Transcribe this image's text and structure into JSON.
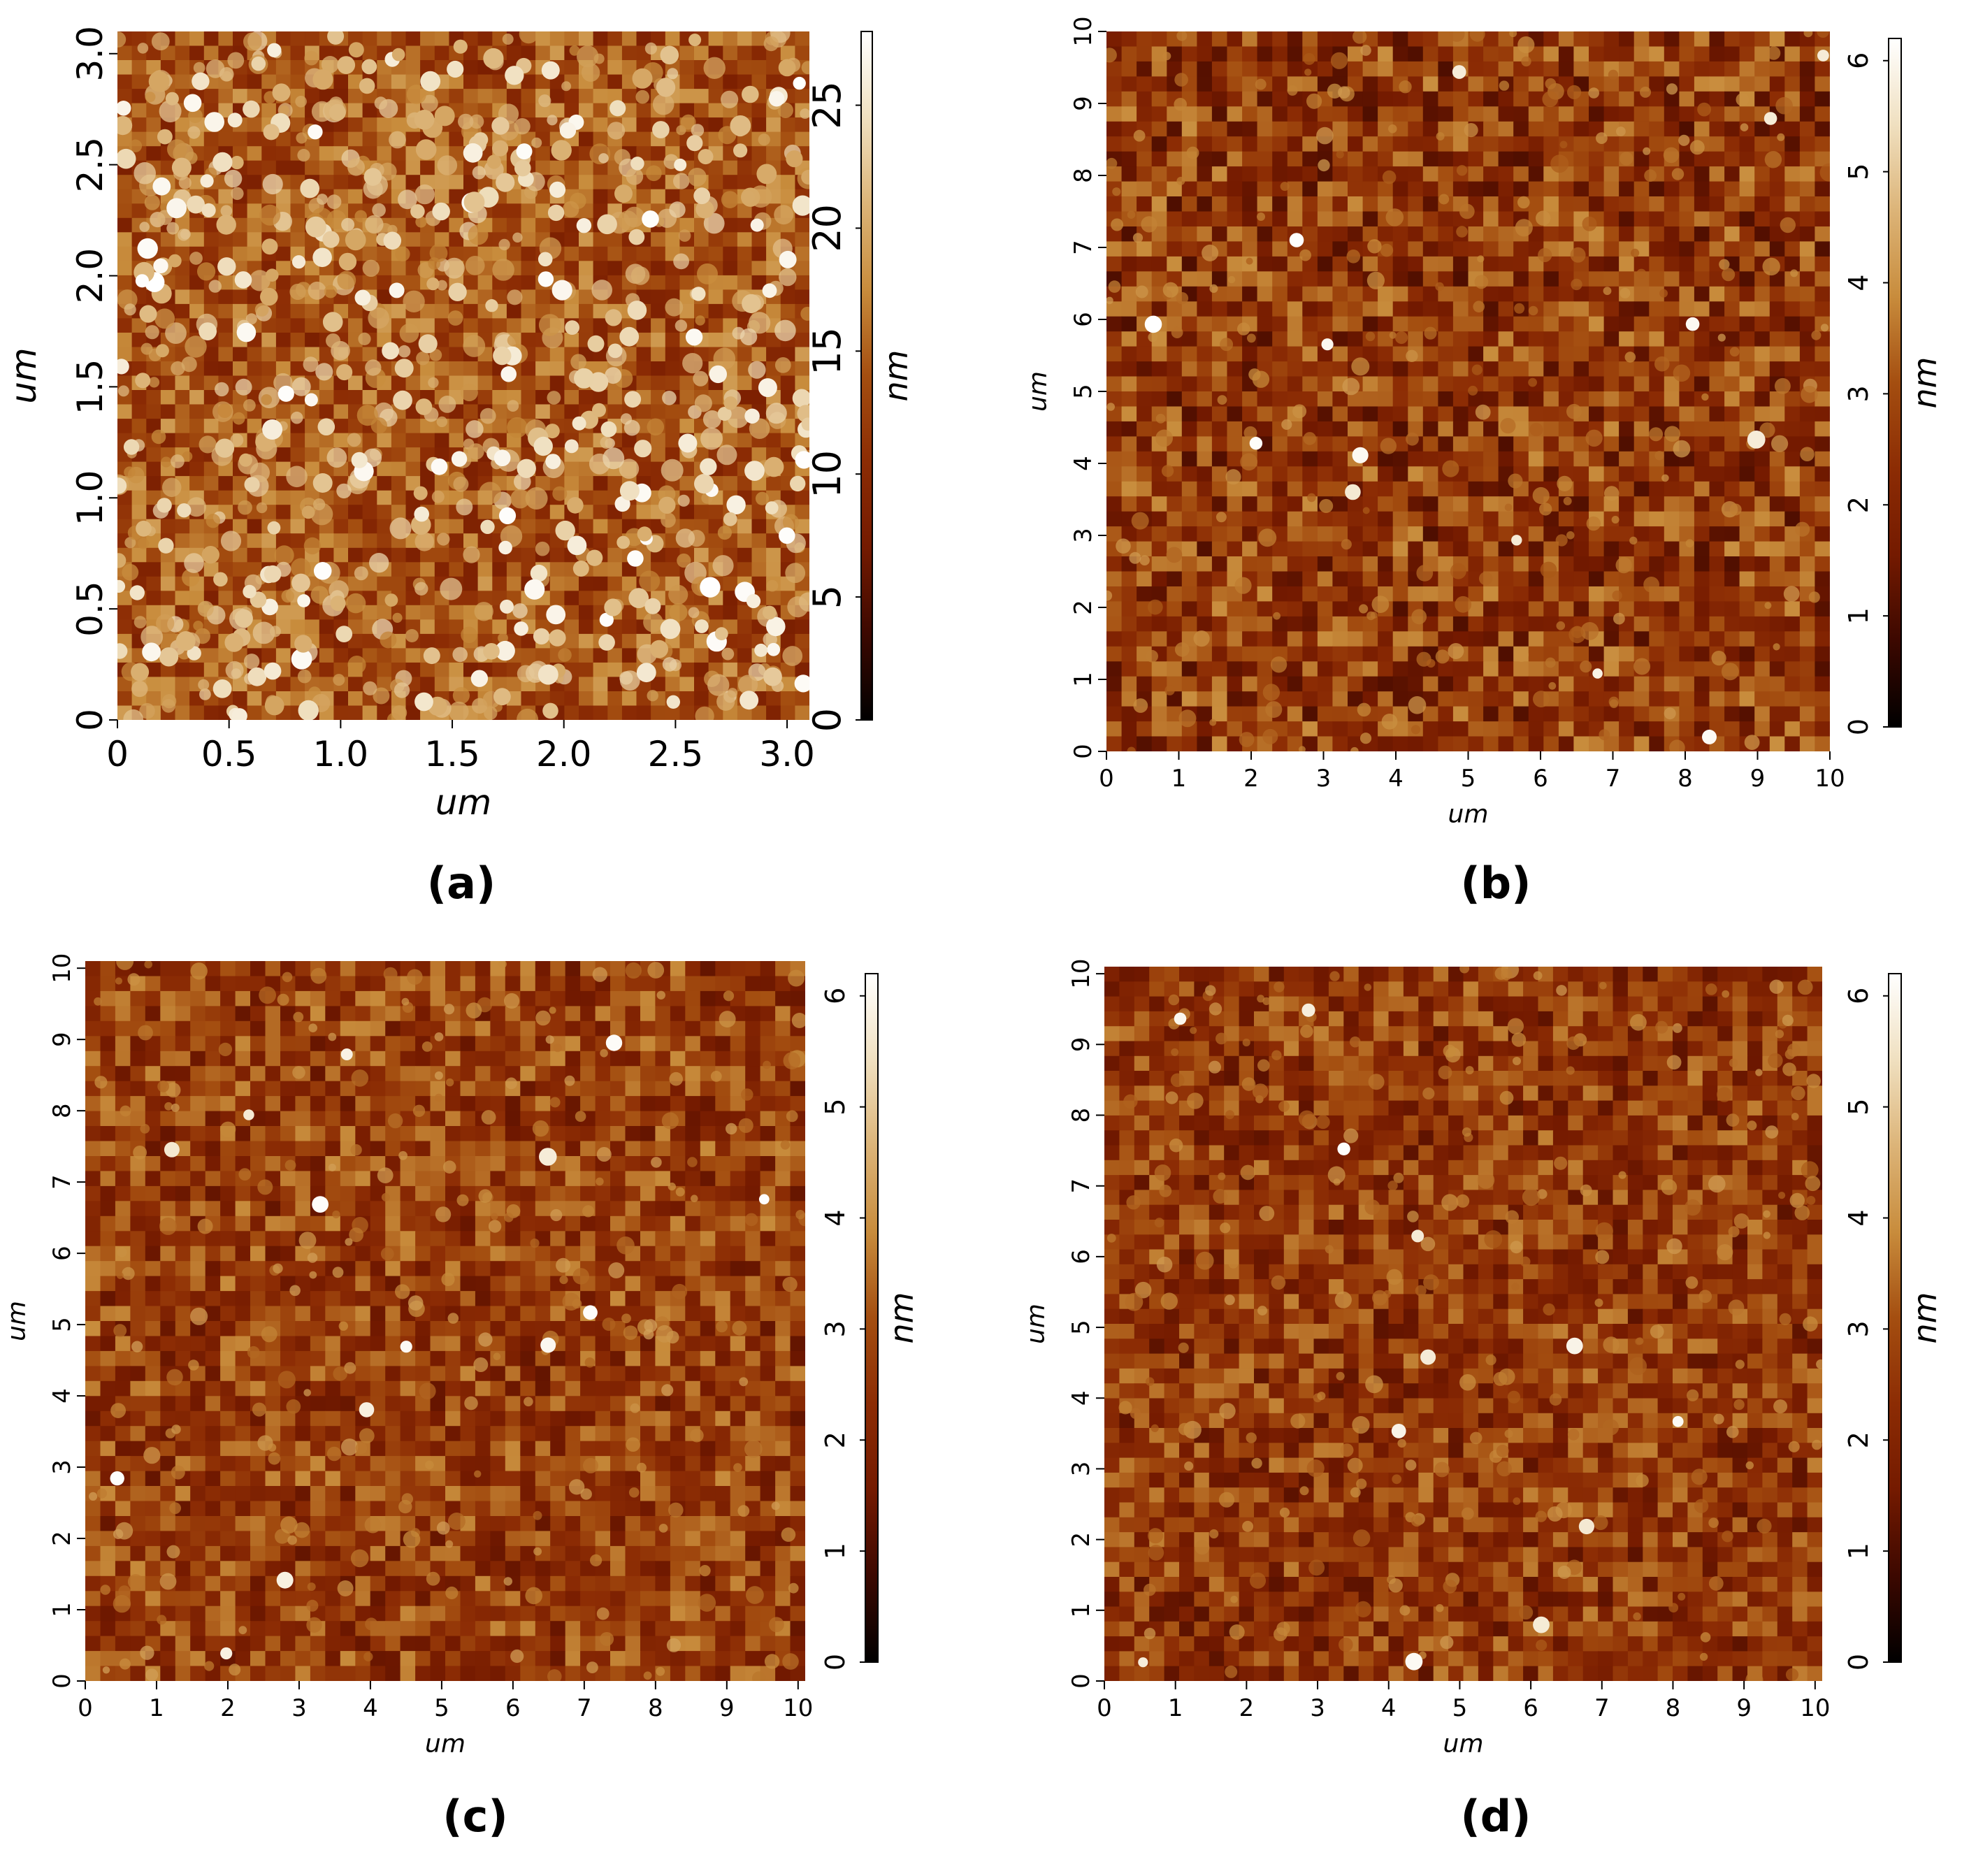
{
  "colors": {
    "background": "#ffffff",
    "afm_colormap": [
      "#000000",
      "#3c0800",
      "#741a00",
      "#8c2c04",
      "#a44e10",
      "#c88c3c",
      "#dcb478",
      "#f0e0c0",
      "#ffffff"
    ]
  },
  "panels": [
    {
      "id": "a",
      "caption": "(a)",
      "x_label": "um",
      "y_label": "um",
      "x_ticks": [
        "0",
        "0.5",
        "1.0",
        "1.5",
        "2.0",
        "2.5",
        "3.0"
      ],
      "y_ticks": [
        "0",
        "0.5",
        "1.0",
        "1.5",
        "2.0",
        "2.5",
        "3.0"
      ],
      "scan_size_um": 3.1,
      "colorbar": {
        "label": "nm",
        "ticks": [
          "0",
          "5",
          "10",
          "15",
          "20",
          "25"
        ],
        "max_nm": 28
      },
      "texture": {
        "level": 0.48,
        "contrast": 0.7,
        "blob_count": 320,
        "blob_min": 0.7,
        "blob_max": 1.0,
        "seed": 11
      }
    },
    {
      "id": "b",
      "caption": "(b)",
      "x_label": "um",
      "y_label": "um",
      "x_ticks": [
        "0",
        "1",
        "2",
        "3",
        "4",
        "5",
        "6",
        "7",
        "8",
        "9",
        "10"
      ],
      "y_ticks": [
        "0",
        "1",
        "2",
        "3",
        "4",
        "5",
        "6",
        "7",
        "8",
        "9",
        "10"
      ],
      "scan_size_um": 10,
      "colorbar": {
        "label": "nm",
        "ticks": [
          "0",
          "1",
          "2",
          "3",
          "4",
          "5",
          "6"
        ],
        "max_nm": 6.2
      },
      "texture": {
        "level": 0.4,
        "contrast": 0.85,
        "blob_count": 14,
        "blob_min": 0.9,
        "blob_max": 1.0,
        "seed": 23
      }
    },
    {
      "id": "c",
      "caption": "(c)",
      "x_label": "um",
      "y_label": "um",
      "x_ticks": [
        "0",
        "1",
        "2",
        "3",
        "4",
        "5",
        "6",
        "7",
        "8",
        "9",
        "10"
      ],
      "y_ticks": [
        "0",
        "1",
        "2",
        "3",
        "4",
        "5",
        "6",
        "7",
        "8",
        "9",
        "10"
      ],
      "scan_size_um": 10.1,
      "colorbar": {
        "label": "nm",
        "ticks": [
          "0",
          "1",
          "2",
          "3",
          "4",
          "5",
          "6"
        ],
        "max_nm": 6.2
      },
      "texture": {
        "level": 0.42,
        "contrast": 0.75,
        "blob_count": 14,
        "blob_min": 0.9,
        "blob_max": 1.0,
        "seed": 37
      }
    },
    {
      "id": "d",
      "caption": "(d)",
      "x_label": "um",
      "y_label": "um",
      "x_ticks": [
        "0",
        "1",
        "2",
        "3",
        "4",
        "5",
        "6",
        "7",
        "8",
        "9",
        "10"
      ],
      "y_ticks": [
        "0",
        "1",
        "2",
        "3",
        "4",
        "5",
        "6",
        "7",
        "8",
        "9",
        "10"
      ],
      "scan_size_um": 10.1,
      "colorbar": {
        "label": "nm",
        "ticks": [
          "0",
          "1",
          "2",
          "3",
          "4",
          "5",
          "6"
        ],
        "max_nm": 6.2
      },
      "texture": {
        "level": 0.4,
        "contrast": 0.75,
        "blob_count": 12,
        "blob_min": 0.9,
        "blob_max": 1.0,
        "seed": 53
      }
    }
  ]
}
